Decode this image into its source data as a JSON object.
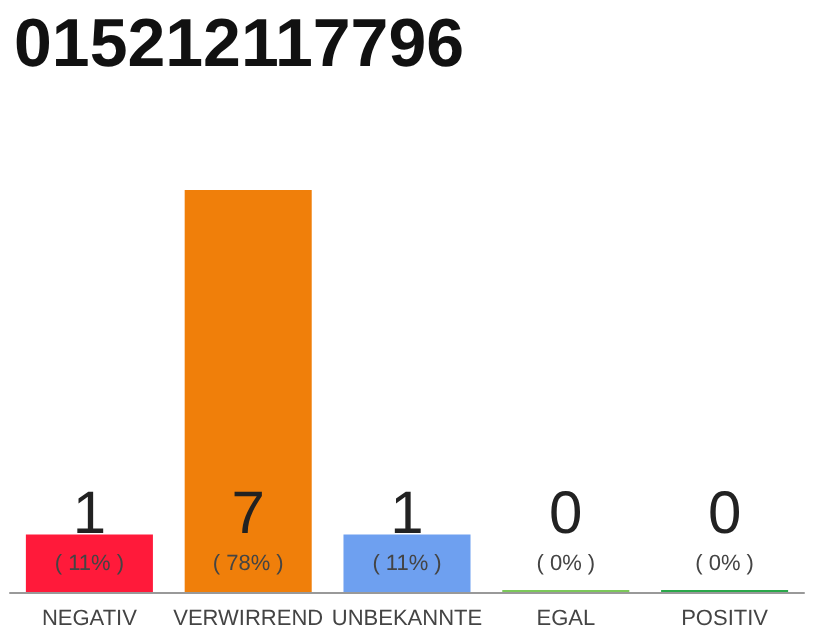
{
  "chart_data": {
    "type": "bar",
    "title": "015212117796",
    "categories": [
      "NEGATIV",
      "VERWIRREND",
      "UNBEKANNTE",
      "EGAL",
      "POSITIV"
    ],
    "values": [
      1,
      7,
      1,
      0,
      0
    ],
    "colors": [
      "#ff1a3a",
      "#f07f0a",
      "#6ea0f0",
      "#7cc85a",
      "#2aa84a"
    ],
    "value_labels": [
      "1\n( 11% )",
      "7\n( 78% )",
      "1\n( 11% )",
      "0\n( 0% )",
      "0\n( 0% )"
    ]
  }
}
